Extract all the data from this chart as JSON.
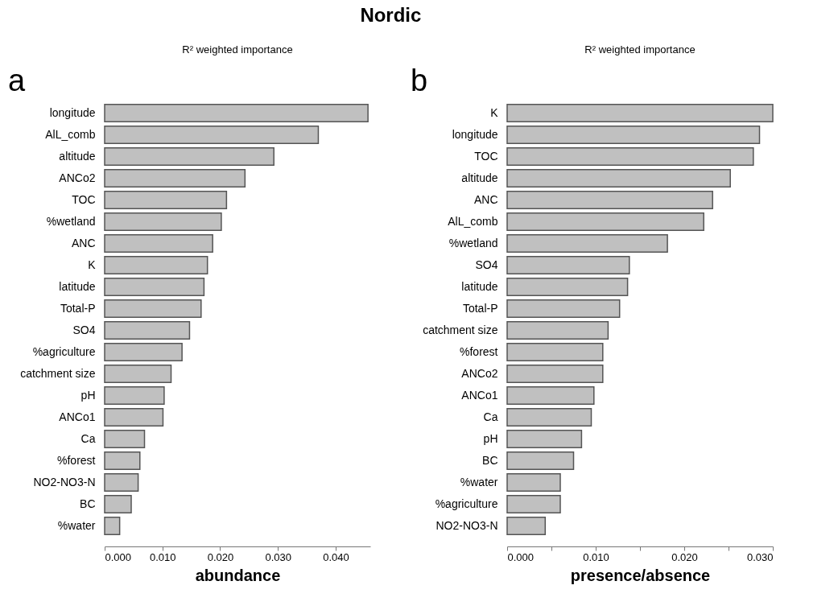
{
  "chart_data": [
    {
      "type": "bar",
      "title": "Nordic",
      "subtitle": "R² weighted importance",
      "orientation": "horizontal",
      "xlabel": "abundance",
      "annotations": [
        "a"
      ],
      "color": "#c0c0c0",
      "grid": false,
      "categories": [
        "longitude",
        "AlL_comb",
        "altitude",
        "ANCo2",
        "TOC",
        "%wetland",
        "ANC",
        "K",
        "latitude",
        "Total-P",
        "SO4",
        "%agriculture",
        "catchment size",
        "pH",
        "ANCo1",
        "Ca",
        "%forest",
        "NO2-NO3-N",
        "BC",
        "%water"
      ],
      "values": [
        0.0456,
        0.037,
        0.0293,
        0.0243,
        0.0211,
        0.0202,
        0.0187,
        0.0178,
        0.0172,
        0.0167,
        0.0147,
        0.0134,
        0.0115,
        0.0103,
        0.0101,
        0.0069,
        0.0061,
        0.0058,
        0.0046,
        0.0026
      ],
      "xlim": [
        0,
        0.046
      ],
      "xticks": [
        {
          "value": 0,
          "label": "0.000"
        },
        {
          "value": 0.01,
          "label": "0.010"
        },
        {
          "value": 0.02,
          "label": "0.020"
        },
        {
          "value": 0.03,
          "label": "0.030"
        },
        {
          "value": 0.04,
          "label": "0.040"
        }
      ]
    },
    {
      "type": "bar",
      "subtitle": "R² weighted importance",
      "orientation": "horizontal",
      "xlabel": "presence/absence",
      "annotations": [
        "b"
      ],
      "color": "#c0c0c0",
      "grid": false,
      "categories": [
        "K",
        "longitude",
        "TOC",
        "altitude",
        "ANC",
        "AlL_comb",
        "%wetland",
        "SO4",
        "latitude",
        "Total-P",
        "catchment size",
        "%forest",
        "ANCo2",
        "ANCo1",
        "Ca",
        "pH",
        "BC",
        "%water",
        "%agriculture",
        "NO2-NO3-N"
      ],
      "values": [
        0.03,
        0.0285,
        0.0278,
        0.0252,
        0.0232,
        0.0222,
        0.0181,
        0.0138,
        0.0136,
        0.0127,
        0.0114,
        0.0108,
        0.0108,
        0.0098,
        0.0095,
        0.0084,
        0.0075,
        0.006,
        0.006,
        0.0043
      ],
      "xlim": [
        0,
        0.03
      ],
      "xticks": [
        {
          "value": 0,
          "label": "0.000"
        },
        {
          "value": 0.005,
          "label": null
        },
        {
          "value": 0.01,
          "label": "0.010"
        },
        {
          "value": 0.015,
          "label": null
        },
        {
          "value": 0.02,
          "label": "0.020"
        },
        {
          "value": 0.025,
          "label": null
        },
        {
          "value": 0.03,
          "label": "0.030"
        }
      ]
    }
  ]
}
